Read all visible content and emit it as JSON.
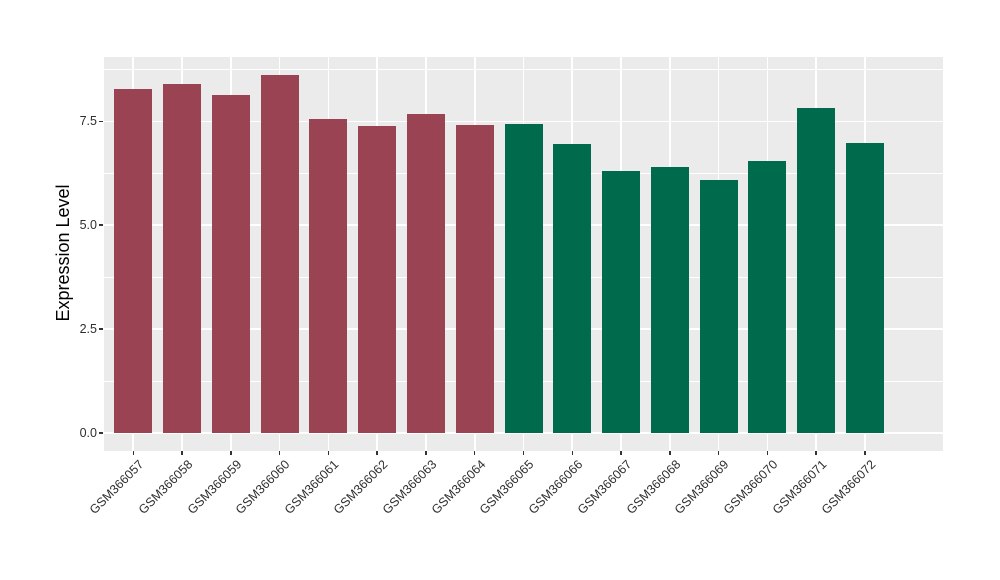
{
  "chart_data": {
    "type": "bar",
    "ylabel": "Expression Level",
    "xlabel": "",
    "categories": [
      "GSM366057",
      "GSM366058",
      "GSM366059",
      "GSM366060",
      "GSM366061",
      "GSM366062",
      "GSM366063",
      "GSM366064",
      "GSM366065",
      "GSM366066",
      "GSM366067",
      "GSM366068",
      "GSM366069",
      "GSM366070",
      "GSM366071",
      "GSM366072"
    ],
    "values": [
      8.28,
      8.4,
      8.14,
      8.62,
      7.56,
      7.39,
      7.68,
      7.41,
      7.44,
      6.95,
      6.3,
      6.41,
      6.08,
      6.54,
      7.82,
      6.98
    ],
    "bar_colors": [
      "#9A4352",
      "#9A4352",
      "#9A4352",
      "#9A4352",
      "#9A4352",
      "#9A4352",
      "#9A4352",
      "#9A4352",
      "#006B4C",
      "#006B4C",
      "#006B4C",
      "#006B4C",
      "#006B4C",
      "#006B4C",
      "#006B4C",
      "#006B4C"
    ],
    "group_colors": {
      "maroon_group": "#9A4352",
      "green_group": "#006B4C"
    },
    "y_ticks": [
      0,
      2.5,
      5,
      7.5
    ],
    "y_tick_labels": [
      "0.0",
      "2.5",
      "5.0",
      "7.5"
    ],
    "y_minor_ticks": [
      1.25,
      3.75,
      6.25,
      8.75
    ],
    "ylim": [
      -0.45,
      9.05
    ],
    "x_tick_rotation_deg": 45,
    "legend": "none",
    "grid": true,
    "panel_background": "#EBEBEB",
    "grid_color": "#FFFFFF",
    "axis_text_color": "#2e2e2e"
  }
}
